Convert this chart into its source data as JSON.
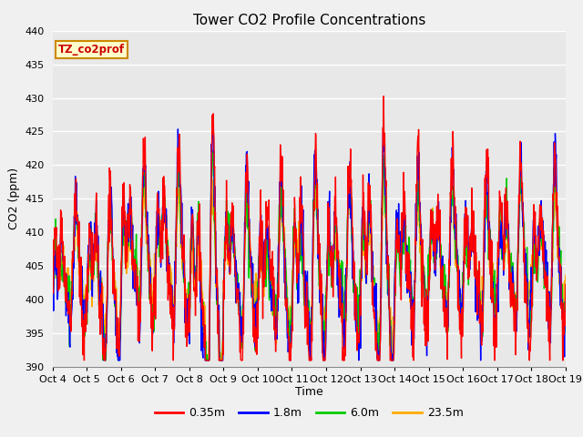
{
  "title": "Tower CO2 Profile Concentrations",
  "ylabel": "CO2 (ppm)",
  "xlabel": "Time",
  "ylim": [
    390,
    440
  ],
  "yticks": [
    390,
    395,
    400,
    405,
    410,
    415,
    420,
    425,
    430,
    435,
    440
  ],
  "xtick_labels": [
    "Oct 4",
    "Oct 5",
    "Oct 6",
    "Oct 7",
    "Oct 8",
    "Oct 9",
    "Oct 10",
    "Oct 11",
    "Oct 12",
    "Oct 13",
    "Oct 14",
    "Oct 15",
    "Oct 16",
    "Oct 17",
    "Oct 18",
    "Oct 19"
  ],
  "legend_label": "TZ_co2prof",
  "series_labels": [
    "0.35m",
    "1.8m",
    "6.0m",
    "23.5m"
  ],
  "series_colors": [
    "#ff0000",
    "#0000ff",
    "#00cc00",
    "#ffaa00"
  ],
  "plot_bg_color": "#e8e8e8",
  "fig_bg_color": "#f0f0f0",
  "title_fontsize": 11,
  "axis_label_fontsize": 9,
  "tick_fontsize": 8,
  "line_width": 1.0,
  "n_points": 1440,
  "base_co2": 407,
  "days": 15
}
